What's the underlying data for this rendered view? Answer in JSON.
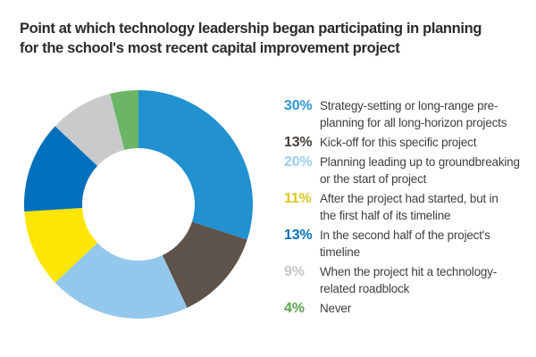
{
  "title": {
    "lines": [
      "Point at which technology leadership began participating in planning",
      "for the school's most recent capital improvement project"
    ],
    "color": "#2b2b2b"
  },
  "legend": {
    "text_color": "#3f3f41"
  },
  "chart_data": {
    "type": "pie",
    "subtype": "donut",
    "title": "Point at which technology leadership began participating in planning for the school's most recent capital improvement project",
    "total": 100,
    "start_angle_deg": -90,
    "direction": "clockwise",
    "inner_radius_ratio": 0.49,
    "legend_position": "right",
    "grid": false,
    "segments": [
      {
        "value": 30,
        "percent_label": "30%",
        "label": "Strategy-setting or long-range pre-planning for all long-horizon projects",
        "label_lines": [
          "Strategy-setting or long-range pre-",
          "planning for all long-horizon projects"
        ],
        "color": "#2191d0",
        "percent_color": "#2e95d3"
      },
      {
        "value": 13,
        "percent_label": "13%",
        "label": "Kick-off for this specific project",
        "label_lines": [
          "Kick-off for this specific project"
        ],
        "color": "#5e544b",
        "percent_color": "#474039"
      },
      {
        "value": 20,
        "percent_label": "20%",
        "label": "Planning leading up to groundbreaking or the start of project",
        "label_lines": [
          "Planning leading up to groundbreaking",
          "or the start of project"
        ],
        "color": "#93c7eb",
        "percent_color": "#9cccee"
      },
      {
        "value": 11,
        "percent_label": "11%",
        "label": "After the project had started, but in the first half of its timeline",
        "label_lines": [
          "After the project had started, but in",
          "the first half of its timeline"
        ],
        "color": "#ffe503",
        "percent_color": "#d9c922"
      },
      {
        "value": 13,
        "percent_label": "13%",
        "label": "In the second half of the project's timeline",
        "label_lines": [
          "In the second half of the project's",
          "timeline"
        ],
        "color": "#0070bd",
        "percent_color": "#0070bd"
      },
      {
        "value": 9,
        "percent_label": "9%",
        "label": "When the project hit a technology-related roadblock",
        "label_lines": [
          "When the project hit a technology-",
          "related roadblock"
        ],
        "color": "#c9cacc",
        "percent_color": "#c4c5c7"
      },
      {
        "value": 4,
        "percent_label": "4%",
        "label": "Never",
        "label_lines": [
          "Never"
        ],
        "color": "#6cb566",
        "percent_color": "#58a44c"
      }
    ]
  }
}
